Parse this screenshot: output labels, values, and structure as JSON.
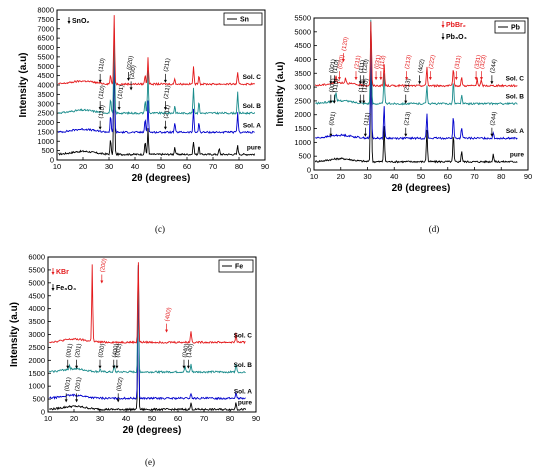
{
  "figure": {
    "colors": {
      "pure": "#000000",
      "solA": "#0000cc",
      "solB": "#1a8c8c",
      "solC": "#e41a1c",
      "annot_black": "#000000",
      "annot_red": "#e41a1c"
    }
  },
  "chart_data": [
    {
      "type": "line",
      "panel": "(c)",
      "xlabel": "2θ (degrees)",
      "ylabel": "Intensity (a.u)",
      "xlim": [
        10,
        90
      ],
      "ylim": [
        0,
        8000
      ],
      "xticks": [
        10,
        20,
        30,
        40,
        50,
        60,
        70,
        80,
        90
      ],
      "yticks": [
        0,
        500,
        1000,
        1500,
        2000,
        2500,
        3000,
        3500,
        4000,
        4500,
        5000,
        5500,
        6000,
        6500,
        7000,
        7500,
        8000
      ],
      "legend": {
        "series_label": "Sn",
        "position": "top-right",
        "phase_markers": [
          {
            "text": "SnO₂",
            "color": "#000000"
          }
        ]
      },
      "series": [
        {
          "name": "pure",
          "baseline": 300,
          "color": "#000000",
          "peaks": [
            [
              30.6,
              800
            ],
            [
              32.0,
              5800
            ],
            [
              43.9,
              700
            ],
            [
              45.0,
              1400
            ],
            [
              55.3,
              400
            ],
            [
              62.5,
              700
            ],
            [
              64.6,
              450
            ],
            [
              72.4,
              300
            ],
            [
              79.5,
              500
            ]
          ]
        },
        {
          "name": "Sol. A",
          "baseline": 1480,
          "color": "#0000cc",
          "peaks": [
            [
              30.6,
              900
            ],
            [
              32.0,
              4800
            ],
            [
              43.9,
              700
            ],
            [
              45.0,
              1700
            ],
            [
              55.3,
              500
            ],
            [
              62.5,
              1200
            ],
            [
              64.6,
              500
            ],
            [
              79.5,
              1100
            ]
          ]
        },
        {
          "name": "Sol. B",
          "baseline": 2500,
          "color": "#1a8c8c",
          "peaks": [
            [
              30.6,
              800
            ],
            [
              32.0,
              4500
            ],
            [
              43.9,
              700
            ],
            [
              45.0,
              2300
            ],
            [
              55.3,
              400
            ],
            [
              62.5,
              1300
            ],
            [
              64.6,
              600
            ],
            [
              79.5,
              1100
            ]
          ]
        },
        {
          "name": "Sol. C",
          "baseline": 4050,
          "color": "#e41a1c",
          "peaks": [
            [
              30.6,
              500
            ],
            [
              32.0,
              3700
            ],
            [
              43.9,
              500
            ],
            [
              45.0,
              1450
            ],
            [
              55.3,
              300
            ],
            [
              62.5,
              900
            ],
            [
              64.6,
              500
            ],
            [
              79.5,
              600
            ]
          ]
        }
      ],
      "annotations": [
        {
          "text": "(110)",
          "x": 26.6,
          "y": 2200,
          "series": "Sol. A",
          "color": "#000000"
        },
        {
          "text": "(211)",
          "x": 51.7,
          "y": 2200,
          "series": "Sol. A",
          "color": "#000000"
        },
        {
          "text": "(110)",
          "x": 26.6,
          "y": 3250,
          "series": "Sol. B",
          "color": "#000000"
        },
        {
          "text": "(101)",
          "x": 33.9,
          "y": 3250,
          "series": "Sol. B",
          "color": "#000000"
        },
        {
          "text": "(211)",
          "x": 51.7,
          "y": 3250,
          "series": "Sol. B",
          "color": "#000000"
        },
        {
          "text": "(110)",
          "x": 26.6,
          "y": 4700,
          "series": "Sol. C",
          "color": "#000000"
        },
        {
          "text": "(020)",
          "x": 37.5,
          "y": 4800,
          "series": "Sol. C",
          "color": "#000000"
        },
        {
          "text": "(200)",
          "x": 38.5,
          "y": 4300,
          "series": "Sol. C",
          "color": "#000000"
        },
        {
          "text": "(211)",
          "x": 51.7,
          "y": 4700,
          "series": "Sol. C",
          "color": "#000000"
        }
      ]
    },
    {
      "type": "line",
      "panel": "(d)",
      "xlabel": "2θ (degrees)",
      "ylabel": "Intensity (a.u)",
      "xlim": [
        10,
        90
      ],
      "ylim": [
        0,
        5500
      ],
      "xticks": [
        10,
        20,
        30,
        40,
        50,
        60,
        70,
        80,
        90
      ],
      "yticks": [
        0,
        500,
        1000,
        1500,
        2000,
        2500,
        3000,
        3500,
        4000,
        4500,
        5000,
        5500
      ],
      "legend": {
        "series_label": "Pb",
        "position": "top-right",
        "phase_markers": [
          {
            "text": "PbBr₂",
            "color": "#e41a1c"
          },
          {
            "text": "Pb₃O₄",
            "color": "#000000"
          }
        ]
      },
      "series": [
        {
          "name": "pure",
          "baseline": 300,
          "color": "#000000",
          "peaks": [
            [
              31.3,
              4600
            ],
            [
              36.2,
              1300
            ],
            [
              52.2,
              1200
            ],
            [
              62.1,
              1000
            ],
            [
              65.2,
              400
            ],
            [
              77.0,
              300
            ]
          ]
        },
        {
          "name": "Sol. A",
          "baseline": 1150,
          "color": "#0000cc",
          "peaks": [
            [
              31.3,
              4000
            ],
            [
              36.2,
              1200
            ],
            [
              52.2,
              900
            ],
            [
              62.1,
              800
            ],
            [
              65.2,
              400
            ],
            [
              77.0,
              200
            ]
          ]
        },
        {
          "name": "Sol. B",
          "baseline": 2400,
          "color": "#1a8c8c",
          "peaks": [
            [
              18.2,
              300
            ],
            [
              31.3,
              3100
            ],
            [
              36.2,
              1100
            ],
            [
              52.2,
              700
            ],
            [
              62.1,
              800
            ],
            [
              65.2,
              300
            ]
          ]
        },
        {
          "name": "Sol. C",
          "baseline": 3050,
          "color": "#e41a1c",
          "peaks": [
            [
              18.2,
              300
            ],
            [
              21.8,
              200
            ],
            [
              31.3,
              2400
            ],
            [
              36.2,
              800
            ],
            [
              52.2,
              700
            ],
            [
              62.1,
              600
            ],
            [
              65.2,
              300
            ],
            [
              71.0,
              250
            ],
            [
              72.5,
              200
            ]
          ]
        }
      ],
      "annotations": [
        {
          "text": "(001)",
          "x": 16.3,
          "y": 1600,
          "color": "#000000"
        },
        {
          "text": "(111)",
          "x": 29.2,
          "y": 1600,
          "color": "#000000"
        },
        {
          "text": "(213)",
          "x": 44.3,
          "y": 1600,
          "color": "#000000"
        },
        {
          "text": "(244)",
          "x": 76.5,
          "y": 1600,
          "color": "#000000"
        },
        {
          "text": "(001)",
          "x": 16.3,
          "y": 2800,
          "color": "#000000"
        },
        {
          "text": "(110)",
          "x": 17.6,
          "y": 2800,
          "color": "#000000"
        },
        {
          "text": "(111)",
          "x": 27.3,
          "y": 2800,
          "color": "#000000"
        },
        {
          "text": "(120)",
          "x": 28.6,
          "y": 2800,
          "color": "#000000"
        },
        {
          "text": "(213)",
          "x": 44.3,
          "y": 2800,
          "color": "#000000"
        },
        {
          "text": "(001)",
          "x": 16.3,
          "y": 3500,
          "color": "#000000"
        },
        {
          "text": "(110)",
          "x": 17.6,
          "y": 3500,
          "color": "#000000"
        },
        {
          "text": "(111)",
          "x": 27.3,
          "y": 3500,
          "color": "#000000"
        },
        {
          "text": "(120)",
          "x": 28.6,
          "y": 3500,
          "color": "#000000"
        },
        {
          "text": "(402)",
          "x": 49.5,
          "y": 3500,
          "color": "#000000"
        },
        {
          "text": "(244)",
          "x": 76.5,
          "y": 3500,
          "color": "#000000"
        },
        {
          "text": "(020)",
          "x": 19.5,
          "y": 3650,
          "color": "#e41a1c"
        },
        {
          "text": "(120)",
          "x": 21.0,
          "y": 4300,
          "color": "#e41a1c"
        },
        {
          "text": "(211)",
          "x": 25.7,
          "y": 3650,
          "color": "#e41a1c"
        },
        {
          "text": "(031)",
          "x": 33.2,
          "y": 3650,
          "color": "#e41a1c"
        },
        {
          "text": "(113)",
          "x": 35.0,
          "y": 3650,
          "color": "#e41a1c"
        },
        {
          "text": "(213)",
          "x": 44.6,
          "y": 3650,
          "color": "#e41a1c"
        },
        {
          "text": "(222)",
          "x": 53.5,
          "y": 3650,
          "color": "#e41a1c"
        },
        {
          "text": "(311)",
          "x": 63.2,
          "y": 3650,
          "color": "#e41a1c"
        },
        {
          "text": "(331)",
          "x": 70.6,
          "y": 3650,
          "color": "#e41a1c"
        },
        {
          "text": "(323)",
          "x": 72.6,
          "y": 3650,
          "color": "#e41a1c"
        }
      ]
    },
    {
      "type": "line",
      "panel": "(e)",
      "xlabel": "2θ (degrees)",
      "ylabel": "Intensity (a.u)",
      "xlim": [
        10,
        90
      ],
      "ylim": [
        0,
        6000
      ],
      "xticks": [
        10,
        20,
        30,
        40,
        50,
        60,
        70,
        80,
        90
      ],
      "yticks": [
        0,
        500,
        1000,
        1500,
        2000,
        2500,
        3000,
        3500,
        4000,
        4500,
        5000,
        5500,
        6000
      ],
      "legend": {
        "series_label": "Fe",
        "position": "top-right",
        "phase_markers": [
          {
            "text": "KBr",
            "color": "#e41a1c"
          },
          {
            "text": "Fe₃O₄",
            "color": "#000000"
          }
        ]
      },
      "series": [
        {
          "name": "pure",
          "baseline": 100,
          "color": "#000000",
          "peaks": [
            [
              44.7,
              5800
            ],
            [
              65.0,
              250
            ],
            [
              82.3,
              300
            ]
          ]
        },
        {
          "name": "Sol. A",
          "baseline": 530,
          "color": "#0000cc",
          "peaks": [
            [
              44.7,
              5300
            ],
            [
              65.0,
              200
            ],
            [
              82.3,
              250
            ]
          ]
        },
        {
          "name": "Sol. B",
          "baseline": 1550,
          "color": "#1a8c8c",
          "peaks": [
            [
              18.3,
              150
            ],
            [
              30.1,
              100
            ],
            [
              35.5,
              250
            ],
            [
              44.7,
              4300
            ],
            [
              62.7,
              200
            ],
            [
              65.0,
              300
            ],
            [
              82.3,
              350
            ]
          ]
        },
        {
          "name": "Sol. C",
          "baseline": 2700,
          "color": "#e41a1c",
          "peaks": [
            [
              27.0,
              3000
            ],
            [
              44.7,
              3200
            ],
            [
              65.0,
              450
            ],
            [
              82.3,
              350
            ]
          ]
        }
      ],
      "annotations": [
        {
          "text": "(001)",
          "x": 17.0,
          "y": 800,
          "color": "#000000"
        },
        {
          "text": "(201)",
          "x": 21.0,
          "y": 800,
          "color": "#000000"
        },
        {
          "text": "(002)",
          "x": 37.0,
          "y": 800,
          "color": "#000000"
        },
        {
          "text": "(001)",
          "x": 17.6,
          "y": 2100,
          "color": "#000000"
        },
        {
          "text": "(201)",
          "x": 21.0,
          "y": 2100,
          "color": "#000000"
        },
        {
          "text": "(020)",
          "x": 30.0,
          "y": 2100,
          "color": "#000000"
        },
        {
          "text": "(400)",
          "x": 35.3,
          "y": 2100,
          "color": "#000000"
        },
        {
          "text": "(002)",
          "x": 36.5,
          "y": 2100,
          "color": "#000000"
        },
        {
          "text": "(040)",
          "x": 62.3,
          "y": 2100,
          "color": "#000000"
        },
        {
          "text": "(140)",
          "x": 64.0,
          "y": 2100,
          "color": "#000000"
        },
        {
          "text": "(200)",
          "x": 30.7,
          "y": 5400,
          "color": "#e41a1c"
        },
        {
          "text": "(400)",
          "x": 55.6,
          "y": 3500,
          "color": "#e41a1c"
        }
      ]
    }
  ]
}
